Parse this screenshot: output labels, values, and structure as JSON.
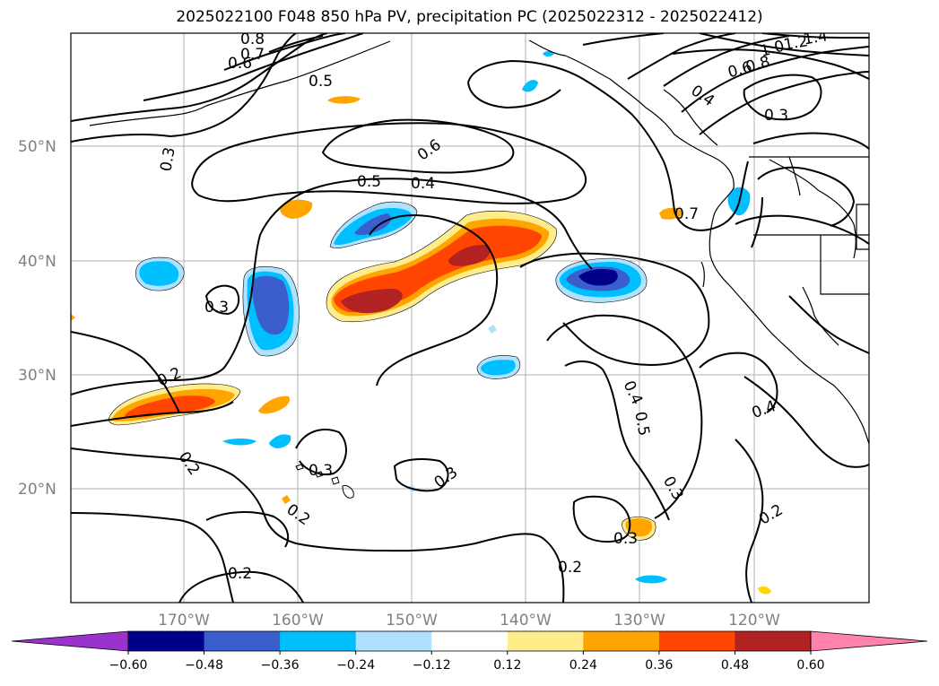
{
  "title": "2025022100 F048 850 hPa PV, precipitation PC (2025022312 - 2025022412)",
  "lat_labels": [
    "50°N",
    "40°N",
    "30°N",
    "20°N"
  ],
  "lon_labels": [
    "170°W",
    "160°W",
    "150°W",
    "140°W",
    "130°W",
    "120°W"
  ],
  "contour_labels": [
    "0.8",
    "0.7",
    "0.6",
    "0.5",
    "0.3",
    "0.6",
    "0.5",
    "0.4",
    "0.3",
    "0.2",
    "0.2",
    "0.3",
    "0.2",
    "0.3",
    "0.2",
    "0.4",
    "0.5",
    "0.3",
    "0.3",
    "0.2",
    "0.4",
    "0.2",
    "0.7",
    "0.4",
    "0.3",
    "1.4",
    "1.2",
    "1.0",
    "0.8",
    "0.6"
  ],
  "colorbar": {
    "ticks": [
      "−0.60",
      "−0.48",
      "−0.36",
      "−0.24",
      "−0.12",
      "0.12",
      "0.24",
      "0.36",
      "0.48",
      "0.60"
    ],
    "colors": [
      "#9a32cd",
      "#00008b",
      "#3a5fcd",
      "#00bfff",
      "#b0e2ff",
      "#ffffff",
      "#ffec8b",
      "#ffa500",
      "#ff4500",
      "#b22222",
      "#ff82ab"
    ]
  }
}
